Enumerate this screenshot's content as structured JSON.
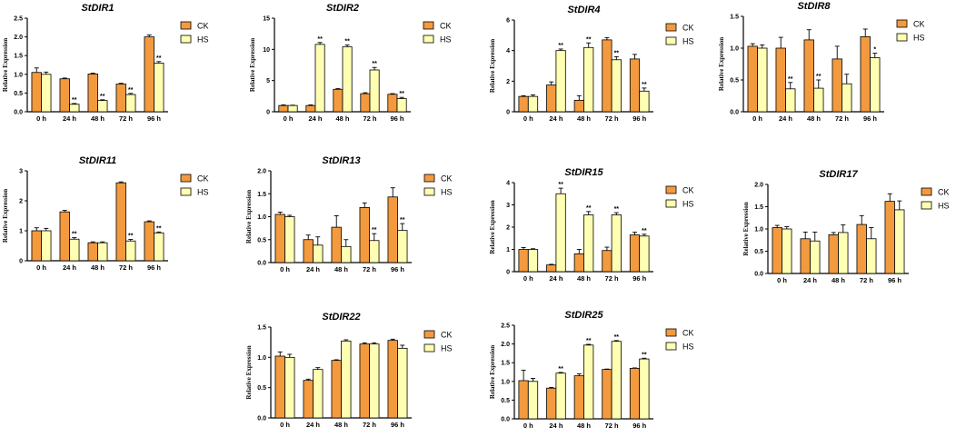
{
  "figure": {
    "y_axis_label": "Relative Expression",
    "legend": [
      "CK",
      "HS"
    ],
    "colors": {
      "CK": "#f39a3e",
      "HS": "#ffffb3",
      "outline": "#000000"
    }
  },
  "chart_data": [
    {
      "type": "bar",
      "title": "StDIR1",
      "categories": [
        "0 h",
        "24 h",
        "48 h",
        "72 h",
        "96 h"
      ],
      "series": [
        {
          "name": "CK",
          "values": [
            1.05,
            0.88,
            1.01,
            0.74,
            2.0
          ],
          "errors": [
            0.12,
            0.02,
            0.02,
            0.02,
            0.05
          ]
        },
        {
          "name": "HS",
          "values": [
            1.0,
            0.2,
            0.3,
            0.46,
            1.3
          ],
          "errors": [
            0.06,
            0.02,
            0.02,
            0.03,
            0.04
          ]
        }
      ],
      "significance": {
        "CK": [
          "",
          "",
          "",
          "",
          ""
        ],
        "HS": [
          "",
          "**",
          "**",
          "**",
          "**"
        ]
      },
      "ylim": [
        0,
        2.5
      ],
      "yticks": [
        0,
        0.5,
        1.0,
        1.5,
        2.0,
        2.5
      ],
      "ytick_labels": [
        "0.0",
        "0.5",
        "1.0",
        "1.5",
        "2.0",
        "2.5"
      ],
      "xlabel": "",
      "ylabel": "Relative Expression"
    },
    {
      "type": "bar",
      "title": "StDIR2",
      "categories": [
        "0 h",
        "24 h",
        "48 h",
        "72 h",
        "96 h"
      ],
      "series": [
        {
          "name": "CK",
          "values": [
            1.0,
            1.0,
            3.6,
            2.9,
            2.8
          ],
          "errors": [
            0.1,
            0.1,
            0.1,
            0.15,
            0.1
          ]
        },
        {
          "name": "HS",
          "values": [
            1.0,
            10.8,
            10.4,
            6.7,
            2.1
          ],
          "errors": [
            0.05,
            0.3,
            0.3,
            0.4,
            0.2
          ]
        }
      ],
      "significance": {
        "CK": [
          "",
          "",
          "",
          "",
          ""
        ],
        "HS": [
          "",
          "**",
          "**",
          "**",
          "**"
        ]
      },
      "ylim": [
        0,
        15
      ],
      "yticks": [
        0,
        5,
        10,
        15
      ],
      "ytick_labels": [
        "0",
        "5",
        "10",
        "15"
      ],
      "xlabel": "",
      "ylabel": "Relative Expression"
    },
    {
      "type": "bar",
      "title": "StDIR4",
      "categories": [
        "0 h",
        "24 h",
        "48 h",
        "72 h",
        "96 h"
      ],
      "series": [
        {
          "name": "CK",
          "values": [
            1.0,
            1.75,
            0.75,
            4.7,
            3.45
          ],
          "errors": [
            0.05,
            0.2,
            0.3,
            0.15,
            0.3
          ]
        },
        {
          "name": "HS",
          "values": [
            1.0,
            4.0,
            4.2,
            3.4,
            1.35
          ],
          "errors": [
            0.1,
            0.1,
            0.3,
            0.2,
            0.2
          ]
        }
      ],
      "significance": {
        "CK": [
          "",
          "",
          "",
          "",
          ""
        ],
        "HS": [
          "",
          "**",
          "**",
          "**",
          "**"
        ]
      },
      "ylim": [
        0,
        6
      ],
      "yticks": [
        0,
        2,
        4,
        6
      ],
      "ytick_labels": [
        "0",
        "2",
        "4",
        "6"
      ],
      "xlabel": "",
      "ylabel": "Relative Expression"
    },
    {
      "type": "bar",
      "title": "StDIR8",
      "categories": [
        "0 h",
        "24 h",
        "48 h",
        "72 h",
        "96 h"
      ],
      "series": [
        {
          "name": "CK",
          "values": [
            1.03,
            1.0,
            1.13,
            0.83,
            1.18
          ],
          "errors": [
            0.04,
            0.17,
            0.16,
            0.2,
            0.12
          ]
        },
        {
          "name": "HS",
          "values": [
            1.0,
            0.36,
            0.37,
            0.44,
            0.85
          ],
          "errors": [
            0.05,
            0.1,
            0.13,
            0.15,
            0.07
          ]
        }
      ],
      "significance": {
        "CK": [
          "",
          "",
          "",
          "",
          ""
        ],
        "HS": [
          "",
          "**",
          "**",
          "",
          "*"
        ]
      },
      "ylim": [
        0,
        1.5
      ],
      "yticks": [
        0,
        0.5,
        1.0,
        1.5
      ],
      "ytick_labels": [
        "0.0",
        "0.5",
        "1.0",
        "1.5"
      ],
      "xlabel": "",
      "ylabel": "Relative Expression"
    },
    {
      "type": "bar",
      "title": "StDIR11",
      "categories": [
        "0 h",
        "24 h",
        "48 h",
        "72 h",
        "96 h"
      ],
      "series": [
        {
          "name": "CK",
          "values": [
            1.0,
            1.63,
            0.6,
            2.6,
            1.3
          ],
          "errors": [
            0.1,
            0.05,
            0.03,
            0.03,
            0.03
          ]
        },
        {
          "name": "HS",
          "values": [
            1.0,
            0.72,
            0.6,
            0.66,
            0.93
          ],
          "errors": [
            0.08,
            0.05,
            0.03,
            0.05,
            0.03
          ]
        }
      ],
      "significance": {
        "CK": [
          "",
          "",
          "",
          "",
          ""
        ],
        "HS": [
          "",
          "**",
          "",
          "**",
          "**"
        ]
      },
      "ylim": [
        0,
        3
      ],
      "yticks": [
        0,
        1,
        2,
        3
      ],
      "ytick_labels": [
        "0",
        "1",
        "2",
        "3"
      ],
      "xlabel": "",
      "ylabel": "Relative Expression"
    },
    {
      "type": "bar",
      "title": "StDIR13",
      "categories": [
        "0 h",
        "24 h",
        "48 h",
        "72 h",
        "96 h"
      ],
      "series": [
        {
          "name": "CK",
          "values": [
            1.05,
            0.5,
            0.77,
            1.2,
            1.43
          ],
          "errors": [
            0.05,
            0.1,
            0.25,
            0.1,
            0.2
          ]
        },
        {
          "name": "HS",
          "values": [
            1.0,
            0.38,
            0.35,
            0.48,
            0.7
          ],
          "errors": [
            0.03,
            0.18,
            0.15,
            0.15,
            0.15
          ]
        }
      ],
      "significance": {
        "CK": [
          "",
          "",
          "",
          "",
          ""
        ],
        "HS": [
          "",
          "",
          "",
          "**",
          "**"
        ]
      },
      "ylim": [
        0,
        2.0
      ],
      "yticks": [
        0,
        0.5,
        1.0,
        1.5,
        2.0
      ],
      "ytick_labels": [
        "0.0",
        "0.5",
        "1.0",
        "1.5",
        "2.0"
      ],
      "xlabel": "",
      "ylabel": "Relative Expression"
    },
    {
      "type": "bar",
      "title": "StDIR15",
      "categories": [
        "0 h",
        "24 h",
        "48 h",
        "72 h",
        "96 h"
      ],
      "series": [
        {
          "name": "CK",
          "values": [
            1.0,
            0.3,
            0.8,
            0.95,
            1.65
          ],
          "errors": [
            0.08,
            0.03,
            0.2,
            0.15,
            0.12
          ]
        },
        {
          "name": "HS",
          "values": [
            1.0,
            3.5,
            2.55,
            2.55,
            1.6
          ],
          "errors": [
            0.03,
            0.25,
            0.15,
            0.1,
            0.08
          ]
        }
      ],
      "significance": {
        "CK": [
          "",
          "",
          "",
          "",
          ""
        ],
        "HS": [
          "",
          "**",
          "**",
          "**",
          "**"
        ]
      },
      "ylim": [
        0,
        4
      ],
      "yticks": [
        0,
        1,
        2,
        3,
        4
      ],
      "ytick_labels": [
        "0",
        "1",
        "2",
        "3",
        "4"
      ],
      "xlabel": "",
      "ylabel": "Relative Expression"
    },
    {
      "type": "bar",
      "title": "StDIR17",
      "categories": [
        "0 h",
        "24 h",
        "48 h",
        "72 h",
        "96 h"
      ],
      "series": [
        {
          "name": "CK",
          "values": [
            1.03,
            0.78,
            0.87,
            1.1,
            1.62
          ],
          "errors": [
            0.05,
            0.15,
            0.05,
            0.2,
            0.17
          ]
        },
        {
          "name": "HS",
          "values": [
            1.0,
            0.73,
            0.92,
            0.78,
            1.43
          ],
          "errors": [
            0.05,
            0.2,
            0.17,
            0.25,
            0.2
          ]
        }
      ],
      "significance": {
        "CK": [
          "",
          "",
          "",
          "",
          ""
        ],
        "HS": [
          "",
          "",
          "",
          "",
          ""
        ]
      },
      "ylim": [
        0,
        2.0
      ],
      "yticks": [
        0,
        0.5,
        1.0,
        1.5,
        2.0
      ],
      "ytick_labels": [
        "0.0",
        "0.5",
        "1.0",
        "1.5",
        "2.0"
      ],
      "xlabel": "",
      "ylabel": "Relative Expression"
    },
    {
      "type": "bar",
      "title": "StDIR22",
      "categories": [
        "0 h",
        "24 h",
        "48 h",
        "72 h",
        "96 h"
      ],
      "series": [
        {
          "name": "CK",
          "values": [
            1.02,
            0.62,
            0.95,
            1.22,
            1.28
          ],
          "errors": [
            0.07,
            0.02,
            0.01,
            0.02,
            0.02
          ]
        },
        {
          "name": "HS",
          "values": [
            1.0,
            0.8,
            1.27,
            1.22,
            1.15
          ],
          "errors": [
            0.05,
            0.03,
            0.02,
            0.02,
            0.05
          ]
        }
      ],
      "significance": {
        "CK": [
          "",
          "",
          "",
          "",
          ""
        ],
        "HS": [
          "",
          "",
          "",
          "",
          ""
        ]
      },
      "ylim": [
        0,
        1.5
      ],
      "yticks": [
        0,
        0.5,
        1.0,
        1.5
      ],
      "ytick_labels": [
        "0.0",
        "0.5",
        "1.0",
        "1.5"
      ],
      "xlabel": "",
      "ylabel": "Relative Expression"
    },
    {
      "type": "bar",
      "title": "StDIR25",
      "categories": [
        "0 h",
        "24 h",
        "48 h",
        "72 h",
        "96 h"
      ],
      "series": [
        {
          "name": "CK",
          "values": [
            1.02,
            0.82,
            1.15,
            1.32,
            1.35
          ],
          "errors": [
            0.28,
            0.02,
            0.05,
            0.01,
            0.01
          ]
        },
        {
          "name": "HS",
          "values": [
            1.0,
            1.22,
            1.97,
            2.07,
            1.6
          ],
          "errors": [
            0.08,
            0.02,
            0.02,
            0.02,
            0.02
          ]
        }
      ],
      "significance": {
        "CK": [
          "",
          "",
          "",
          "",
          ""
        ],
        "HS": [
          "",
          "**",
          "**",
          "**",
          "**"
        ]
      },
      "ylim": [
        0,
        2.5
      ],
      "yticks": [
        0,
        0.5,
        1.0,
        1.5,
        2.0,
        2.5
      ],
      "ytick_labels": [
        "0.0",
        "0.5",
        "1.0",
        "1.5",
        "2.0",
        "2.5"
      ],
      "xlabel": "",
      "ylabel": "Relative Expression"
    }
  ]
}
